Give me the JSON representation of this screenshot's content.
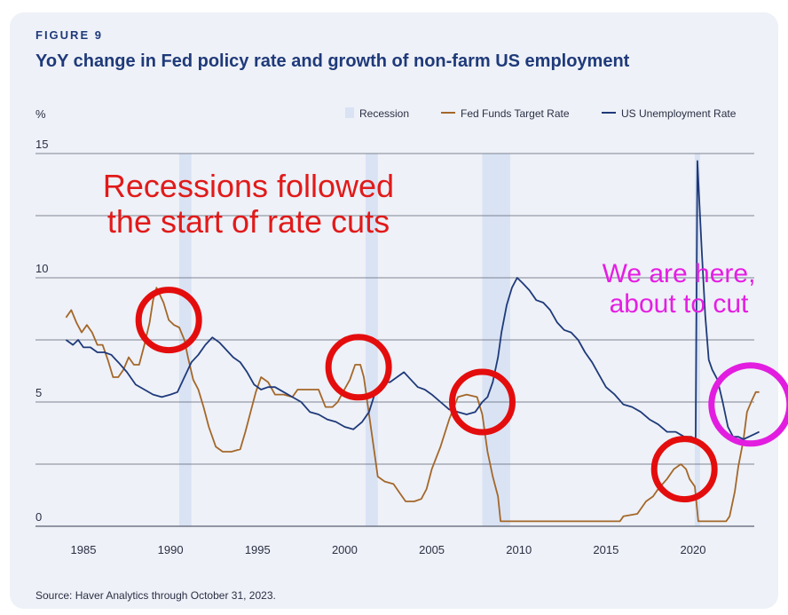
{
  "figure_label": "FIGURE 9",
  "title": "YoY change in Fed policy rate and growth of non-farm US employment",
  "source": "Source: Haver Analytics through October 31, 2023.",
  "annotations": {
    "red_text_line1": "Recessions followed",
    "red_text_line2": "the start of rate cuts",
    "magenta_text_line1": "We are here,",
    "magenta_text_line2": "about to cut"
  },
  "colors": {
    "recession": "#d9e3f4",
    "fed_funds": "#a4672a",
    "unemployment": "#1f3a7a",
    "gridline": "#5a6072",
    "red_circle": "#e40d0d",
    "magenta_circle": "#e21de0"
  },
  "chart_data": {
    "type": "line",
    "ylabel": "%",
    "ylim": [
      0,
      15
    ],
    "yticks": [
      "0",
      "5",
      "10",
      "15"
    ],
    "xlim": [
      1984,
      2024
    ],
    "xticks": [
      "1985",
      "1990",
      "1995",
      "2000",
      "2005",
      "2010",
      "2015",
      "2020"
    ],
    "legend_position": "top-right",
    "legend": [
      "Recession",
      "Fed Funds Target Rate",
      "US Unemployment Rate"
    ],
    "recessions": [
      [
        1990.5,
        1991.2
      ],
      [
        2001.2,
        2001.9
      ],
      [
        2007.9,
        2009.5
      ],
      [
        2020.1,
        2020.4
      ]
    ],
    "series": [
      {
        "name": "Fed Funds Target Rate",
        "points": [
          [
            1984.0,
            8.4
          ],
          [
            1984.3,
            8.7
          ],
          [
            1984.6,
            8.2
          ],
          [
            1984.9,
            7.8
          ],
          [
            1985.2,
            8.1
          ],
          [
            1985.5,
            7.8
          ],
          [
            1985.8,
            7.3
          ],
          [
            1986.1,
            7.3
          ],
          [
            1986.4,
            6.7
          ],
          [
            1986.7,
            6.0
          ],
          [
            1987.0,
            6.0
          ],
          [
            1987.3,
            6.3
          ],
          [
            1987.6,
            6.8
          ],
          [
            1987.9,
            6.5
          ],
          [
            1988.2,
            6.5
          ],
          [
            1988.5,
            7.3
          ],
          [
            1988.8,
            8.2
          ],
          [
            1989.0,
            9.1
          ],
          [
            1989.2,
            9.6
          ],
          [
            1989.4,
            9.3
          ],
          [
            1989.6,
            9.0
          ],
          [
            1989.9,
            8.3
          ],
          [
            1990.2,
            8.1
          ],
          [
            1990.5,
            8.0
          ],
          [
            1990.8,
            7.5
          ],
          [
            1991.0,
            6.8
          ],
          [
            1991.3,
            5.9
          ],
          [
            1991.6,
            5.5
          ],
          [
            1991.9,
            4.8
          ],
          [
            1992.2,
            4.0
          ],
          [
            1992.6,
            3.2
          ],
          [
            1993.0,
            3.0
          ],
          [
            1993.5,
            3.0
          ],
          [
            1994.0,
            3.1
          ],
          [
            1994.3,
            3.8
          ],
          [
            1994.6,
            4.6
          ],
          [
            1994.9,
            5.4
          ],
          [
            1995.2,
            6.0
          ],
          [
            1995.6,
            5.8
          ],
          [
            1996.0,
            5.3
          ],
          [
            1996.5,
            5.3
          ],
          [
            1997.0,
            5.2
          ],
          [
            1997.3,
            5.5
          ],
          [
            1997.8,
            5.5
          ],
          [
            1998.5,
            5.5
          ],
          [
            1998.9,
            4.8
          ],
          [
            1999.3,
            4.8
          ],
          [
            1999.6,
            5.0
          ],
          [
            1999.9,
            5.4
          ],
          [
            2000.3,
            5.9
          ],
          [
            2000.6,
            6.5
          ],
          [
            2000.9,
            6.5
          ],
          [
            2001.1,
            6.0
          ],
          [
            2001.4,
            4.5
          ],
          [
            2001.7,
            3.0
          ],
          [
            2001.9,
            2.0
          ],
          [
            2002.3,
            1.8
          ],
          [
            2002.8,
            1.7
          ],
          [
            2003.2,
            1.3
          ],
          [
            2003.5,
            1.0
          ],
          [
            2004.0,
            1.0
          ],
          [
            2004.4,
            1.1
          ],
          [
            2004.7,
            1.5
          ],
          [
            2005.0,
            2.3
          ],
          [
            2005.5,
            3.2
          ],
          [
            2006.0,
            4.3
          ],
          [
            2006.5,
            5.2
          ],
          [
            2007.0,
            5.3
          ],
          [
            2007.6,
            5.2
          ],
          [
            2007.9,
            4.5
          ],
          [
            2008.2,
            3.0
          ],
          [
            2008.5,
            2.0
          ],
          [
            2008.8,
            1.2
          ],
          [
            2008.95,
            0.2
          ],
          [
            2009.5,
            0.2
          ],
          [
            2012.0,
            0.2
          ],
          [
            2015.8,
            0.2
          ],
          [
            2016.0,
            0.4
          ],
          [
            2016.8,
            0.5
          ],
          [
            2017.3,
            1.0
          ],
          [
            2017.7,
            1.2
          ],
          [
            2018.0,
            1.5
          ],
          [
            2018.5,
            1.9
          ],
          [
            2018.9,
            2.3
          ],
          [
            2019.3,
            2.5
          ],
          [
            2019.6,
            2.3
          ],
          [
            2019.8,
            1.9
          ],
          [
            2020.1,
            1.6
          ],
          [
            2020.3,
            0.2
          ],
          [
            2021.0,
            0.2
          ],
          [
            2021.9,
            0.2
          ],
          [
            2022.1,
            0.4
          ],
          [
            2022.4,
            1.4
          ],
          [
            2022.6,
            2.4
          ],
          [
            2022.9,
            3.5
          ],
          [
            2023.1,
            4.6
          ],
          [
            2023.4,
            5.1
          ],
          [
            2023.6,
            5.4
          ],
          [
            2023.8,
            5.4
          ]
        ]
      },
      {
        "name": "US Unemployment Rate",
        "points": [
          [
            1984.0,
            7.5
          ],
          [
            1984.4,
            7.3
          ],
          [
            1984.7,
            7.5
          ],
          [
            1985.0,
            7.2
          ],
          [
            1985.4,
            7.2
          ],
          [
            1985.8,
            7.0
          ],
          [
            1986.2,
            7.0
          ],
          [
            1986.6,
            6.9
          ],
          [
            1987.0,
            6.6
          ],
          [
            1987.5,
            6.2
          ],
          [
            1988.0,
            5.7
          ],
          [
            1988.5,
            5.5
          ],
          [
            1989.0,
            5.3
          ],
          [
            1989.5,
            5.2
          ],
          [
            1990.0,
            5.3
          ],
          [
            1990.4,
            5.4
          ],
          [
            1990.8,
            6.0
          ],
          [
            1991.2,
            6.6
          ],
          [
            1991.6,
            6.9
          ],
          [
            1992.0,
            7.3
          ],
          [
            1992.4,
            7.6
          ],
          [
            1992.8,
            7.4
          ],
          [
            1993.2,
            7.1
          ],
          [
            1993.6,
            6.8
          ],
          [
            1994.0,
            6.6
          ],
          [
            1994.4,
            6.2
          ],
          [
            1994.8,
            5.7
          ],
          [
            1995.2,
            5.5
          ],
          [
            1995.6,
            5.6
          ],
          [
            1996.0,
            5.6
          ],
          [
            1996.5,
            5.4
          ],
          [
            1997.0,
            5.2
          ],
          [
            1997.5,
            5.0
          ],
          [
            1998.0,
            4.6
          ],
          [
            1998.5,
            4.5
          ],
          [
            1999.0,
            4.3
          ],
          [
            1999.5,
            4.2
          ],
          [
            2000.0,
            4.0
          ],
          [
            2000.5,
            3.9
          ],
          [
            2001.0,
            4.2
          ],
          [
            2001.4,
            4.6
          ],
          [
            2001.8,
            5.5
          ],
          [
            2002.2,
            5.8
          ],
          [
            2002.6,
            5.8
          ],
          [
            2003.0,
            6.0
          ],
          [
            2003.4,
            6.2
          ],
          [
            2003.8,
            5.9
          ],
          [
            2004.2,
            5.6
          ],
          [
            2004.6,
            5.5
          ],
          [
            2005.0,
            5.3
          ],
          [
            2005.5,
            5.0
          ],
          [
            2006.0,
            4.7
          ],
          [
            2006.5,
            4.6
          ],
          [
            2007.0,
            4.5
          ],
          [
            2007.5,
            4.6
          ],
          [
            2007.9,
            5.0
          ],
          [
            2008.2,
            5.2
          ],
          [
            2008.5,
            5.8
          ],
          [
            2008.8,
            6.8
          ],
          [
            2009.0,
            7.8
          ],
          [
            2009.3,
            8.9
          ],
          [
            2009.6,
            9.6
          ],
          [
            2009.9,
            10.0
          ],
          [
            2010.2,
            9.8
          ],
          [
            2010.6,
            9.5
          ],
          [
            2011.0,
            9.1
          ],
          [
            2011.4,
            9.0
          ],
          [
            2011.8,
            8.7
          ],
          [
            2012.2,
            8.2
          ],
          [
            2012.6,
            7.9
          ],
          [
            2013.0,
            7.8
          ],
          [
            2013.4,
            7.5
          ],
          [
            2013.8,
            7.0
          ],
          [
            2014.2,
            6.6
          ],
          [
            2014.6,
            6.1
          ],
          [
            2015.0,
            5.6
          ],
          [
            2015.5,
            5.3
          ],
          [
            2016.0,
            4.9
          ],
          [
            2016.5,
            4.8
          ],
          [
            2017.0,
            4.6
          ],
          [
            2017.5,
            4.3
          ],
          [
            2018.0,
            4.1
          ],
          [
            2018.5,
            3.8
          ],
          [
            2019.0,
            3.8
          ],
          [
            2019.5,
            3.6
          ],
          [
            2019.9,
            3.6
          ],
          [
            2020.15,
            3.5
          ],
          [
            2020.25,
            14.7
          ],
          [
            2020.35,
            13.2
          ],
          [
            2020.5,
            11.1
          ],
          [
            2020.7,
            8.5
          ],
          [
            2020.9,
            6.7
          ],
          [
            2021.1,
            6.3
          ],
          [
            2021.4,
            5.9
          ],
          [
            2021.7,
            5.0
          ],
          [
            2022.0,
            4.0
          ],
          [
            2022.3,
            3.6
          ],
          [
            2022.6,
            3.6
          ],
          [
            2022.9,
            3.5
          ],
          [
            2023.2,
            3.6
          ],
          [
            2023.5,
            3.7
          ],
          [
            2023.8,
            3.8
          ]
        ]
      }
    ],
    "highlights": [
      {
        "kind": "red",
        "x": 1989.9,
        "y": 8.3
      },
      {
        "kind": "red",
        "x": 2000.8,
        "y": 6.4
      },
      {
        "kind": "red",
        "x": 2007.9,
        "y": 5.0
      },
      {
        "kind": "red",
        "x": 2019.5,
        "y": 2.3
      },
      {
        "kind": "magenta",
        "x": 2023.3,
        "y": 4.9
      }
    ]
  }
}
